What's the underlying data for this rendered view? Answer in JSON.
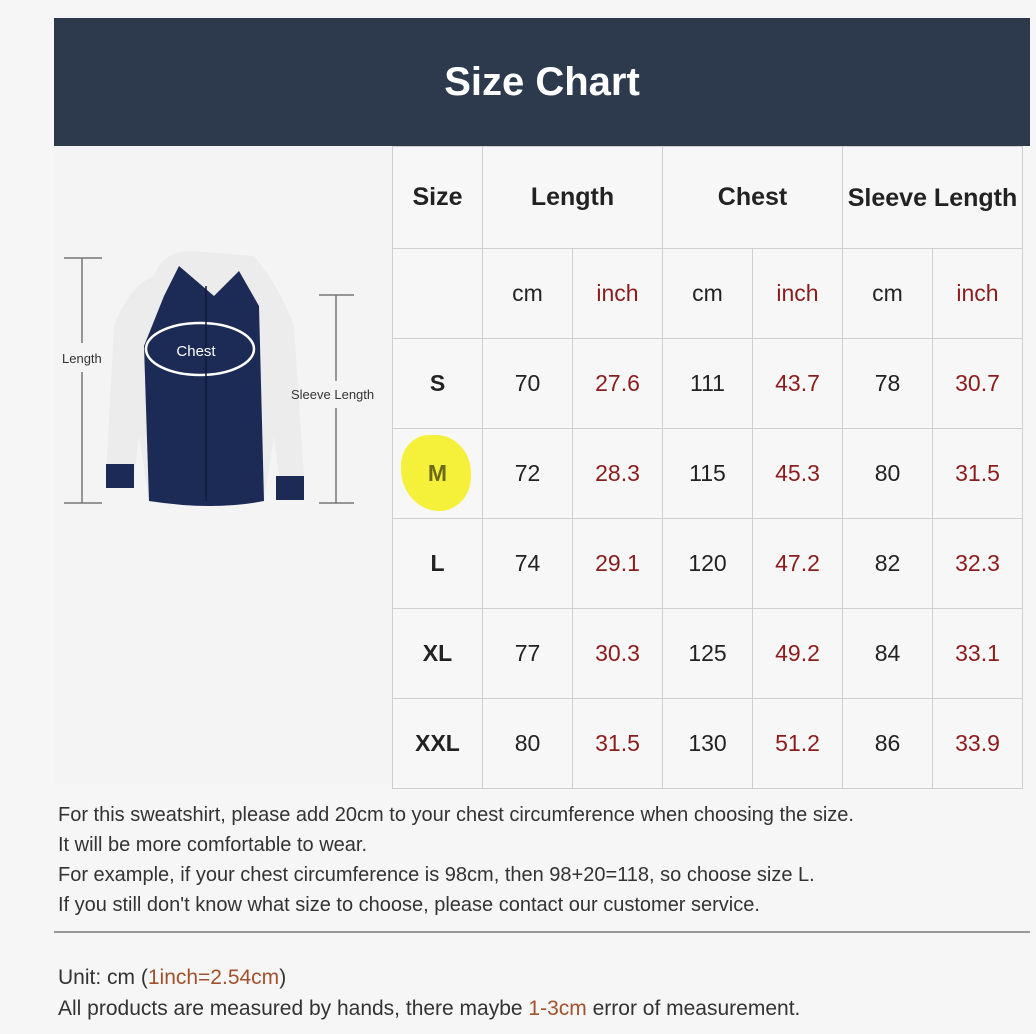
{
  "title": "Size Chart",
  "figure": {
    "length": "Length",
    "chest": "Chest",
    "sleeve": "Sleeve Length"
  },
  "headers": {
    "size": "Size",
    "length": "Length",
    "chest": "Chest",
    "sleeve": "Sleeve Length"
  },
  "units": [
    "cm",
    "inch",
    "cm",
    "inch",
    "cm",
    "inch"
  ],
  "rows": [
    {
      "size": "S",
      "v": [
        "70",
        "27.6",
        "111",
        "43.7",
        "78",
        "30.7"
      ]
    },
    {
      "size": "M",
      "v": [
        "72",
        "28.3",
        "115",
        "45.3",
        "80",
        "31.5"
      ]
    },
    {
      "size": "L",
      "v": [
        "74",
        "29.1",
        "120",
        "47.2",
        "82",
        "32.3"
      ]
    },
    {
      "size": "XL",
      "v": [
        "77",
        "30.3",
        "125",
        "49.2",
        "84",
        "33.1"
      ]
    },
    {
      "size": "XXL",
      "v": [
        "80",
        "31.5",
        "130",
        "51.2",
        "86",
        "33.9"
      ]
    }
  ],
  "notes": [
    "For this sweatshirt, please add 20cm to your chest circumference when choosing the size.",
    "It will be more comfortable to wear.",
    "For example, if your chest circumference is 98cm, then 98+20=118, so choose size L.",
    "If you still don't know what size to choose, please contact our customer service."
  ],
  "footer": {
    "unit_a": "Unit: cm (",
    "unit_b": "1inch=2.54cm",
    "unit_c": ")",
    "err_a": "All products are measured by hands, there maybe ",
    "err_b": "1-3cm",
    "err_c": " error of measurement."
  },
  "highlighted_size": "M",
  "colors": {
    "header": "#2d3a4e",
    "inch": "#8b1c1c",
    "highlight": "#f5f13a"
  }
}
